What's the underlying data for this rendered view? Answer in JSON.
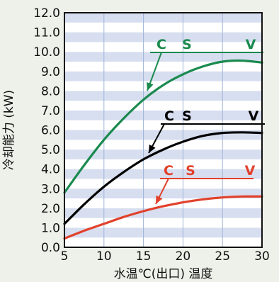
{
  "chart_data": {
    "type": "line",
    "xlabel": "水温℃(出口) 温度",
    "ylabel": "冷却能力 (kW)",
    "xlim": [
      5,
      30
    ],
    "ylim": [
      0,
      12
    ],
    "x_ticks": [
      "5",
      "10",
      "15",
      "20",
      "25",
      "30"
    ],
    "y_ticks": [
      "0.0",
      "1.0",
      "2.0",
      "3.0",
      "4.0",
      "5.0",
      "6.0",
      "7.0",
      "8.0",
      "9.0",
      "10.0",
      "11.0",
      "12.0"
    ],
    "background": "alternating light-blue horizontal bands",
    "grid": true,
    "series": [
      {
        "color": "#1a8a4e",
        "labels": [
          "C",
          "S",
          "V"
        ],
        "x": [
          5,
          7.5,
          10,
          12.5,
          15,
          17.5,
          20,
          22.5,
          25,
          27.5,
          30
        ],
        "values": [
          2.8,
          4.2,
          5.5,
          6.6,
          7.55,
          8.3,
          8.85,
          9.25,
          9.5,
          9.55,
          9.45
        ]
      },
      {
        "color": "#000000",
        "labels": [
          "C",
          "S",
          "V"
        ],
        "x": [
          5,
          7.5,
          10,
          12.5,
          15,
          17.5,
          20,
          22.5,
          25,
          27.5,
          30
        ],
        "values": [
          1.2,
          2.2,
          3.1,
          3.85,
          4.5,
          5.0,
          5.4,
          5.7,
          5.85,
          5.88,
          5.85
        ]
      },
      {
        "color": "#e2412b",
        "labels": [
          "C",
          "S",
          "V"
        ],
        "x": [
          5,
          7.5,
          10,
          12.5,
          15,
          17.5,
          20,
          22.5,
          25,
          27.5,
          30
        ],
        "values": [
          0.45,
          0.85,
          1.2,
          1.55,
          1.85,
          2.1,
          2.3,
          2.45,
          2.55,
          2.6,
          2.6
        ]
      }
    ]
  }
}
